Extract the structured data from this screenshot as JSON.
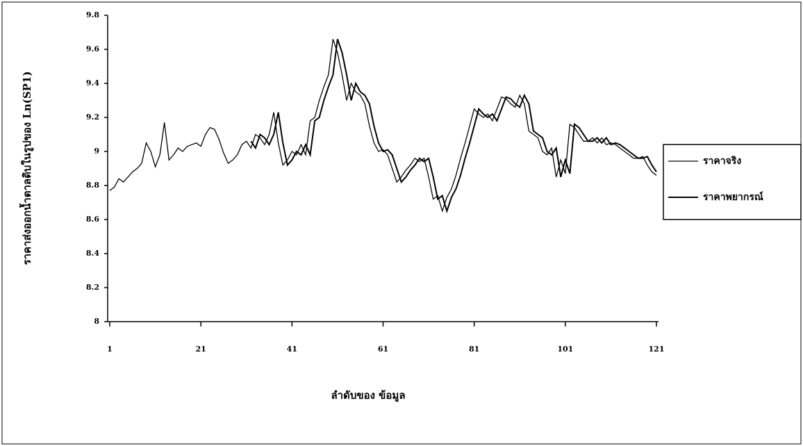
{
  "chart_data": {
    "type": "line",
    "y_label": "ราคาส่งออกน้ำตาลดิบในรูปของ Ln(SP1)",
    "x_label": "ลำดับของ ข้อมูล",
    "x": [
      1,
      2,
      3,
      4,
      5,
      6,
      7,
      8,
      9,
      10,
      11,
      12,
      13,
      14,
      15,
      16,
      17,
      18,
      19,
      20,
      21,
      22,
      23,
      24,
      25,
      26,
      27,
      28,
      29,
      30,
      31,
      32,
      33,
      34,
      35,
      36,
      37,
      38,
      39,
      40,
      41,
      42,
      43,
      44,
      45,
      46,
      47,
      48,
      49,
      50,
      51,
      52,
      53,
      54,
      55,
      56,
      57,
      58,
      59,
      60,
      61,
      62,
      63,
      64,
      65,
      66,
      67,
      68,
      69,
      70,
      71,
      72,
      73,
      74,
      75,
      76,
      77,
      78,
      79,
      80,
      81,
      82,
      83,
      84,
      85,
      86,
      87,
      88,
      89,
      90,
      91,
      92,
      93,
      94,
      95,
      96,
      97,
      98,
      99,
      100,
      101,
      102,
      103,
      104,
      105,
      106,
      107,
      108,
      109,
      110,
      111,
      112,
      113,
      114,
      115,
      116,
      117,
      118,
      119,
      120,
      121
    ],
    "series": [
      {
        "name": "ราคาจริง",
        "color": "#000000",
        "width": 1.3,
        "values": [
          8.77,
          8.79,
          8.84,
          8.82,
          8.85,
          8.88,
          8.9,
          8.93,
          9.05,
          9.0,
          8.91,
          8.98,
          9.17,
          8.95,
          8.98,
          9.02,
          9.0,
          9.03,
          9.04,
          9.05,
          9.03,
          9.1,
          9.14,
          9.13,
          9.07,
          8.99,
          8.93,
          8.95,
          8.98,
          9.04,
          9.06,
          9.02,
          9.1,
          9.08,
          9.04,
          9.1,
          9.23,
          9.05,
          8.92,
          8.95,
          9.0,
          8.98,
          9.04,
          8.98,
          9.18,
          9.2,
          9.3,
          9.38,
          9.45,
          9.66,
          9.58,
          9.45,
          9.3,
          9.4,
          9.35,
          9.33,
          9.28,
          9.15,
          9.05,
          9.0,
          9.01,
          8.98,
          8.9,
          8.82,
          8.85,
          8.89,
          8.92,
          8.96,
          8.94,
          8.96,
          8.85,
          8.72,
          8.74,
          8.65,
          8.73,
          8.78,
          8.86,
          8.96,
          9.05,
          9.15,
          9.25,
          9.22,
          9.2,
          9.22,
          9.18,
          9.25,
          9.32,
          9.31,
          9.28,
          9.26,
          9.33,
          9.28,
          9.12,
          9.1,
          9.08,
          9.0,
          8.98,
          9.02,
          8.85,
          8.95,
          8.87,
          9.16,
          9.14,
          9.1,
          9.06,
          9.06,
          9.08,
          9.05,
          9.08,
          9.04,
          9.05,
          9.04,
          9.02,
          9.0,
          8.98,
          8.96,
          8.96,
          8.97,
          8.92,
          8.88,
          8.86
        ]
      },
      {
        "name": "ราคาพยากรณ์",
        "color": "#000000",
        "width": 2,
        "values": [
          null,
          null,
          null,
          null,
          null,
          null,
          null,
          null,
          null,
          null,
          null,
          null,
          null,
          null,
          null,
          null,
          null,
          null,
          null,
          null,
          null,
          null,
          null,
          null,
          null,
          null,
          null,
          null,
          null,
          null,
          null,
          9.06,
          9.02,
          9.1,
          9.08,
          9.04,
          9.1,
          9.23,
          9.05,
          8.92,
          8.95,
          9.0,
          8.98,
          9.04,
          8.98,
          9.18,
          9.2,
          9.3,
          9.38,
          9.45,
          9.66,
          9.58,
          9.45,
          9.3,
          9.4,
          9.35,
          9.33,
          9.28,
          9.15,
          9.05,
          9.0,
          9.01,
          8.98,
          8.9,
          8.82,
          8.85,
          8.89,
          8.92,
          8.96,
          8.94,
          8.96,
          8.85,
          8.72,
          8.74,
          8.65,
          8.73,
          8.78,
          8.86,
          8.96,
          9.05,
          9.15,
          9.25,
          9.22,
          9.2,
          9.22,
          9.18,
          9.25,
          9.32,
          9.31,
          9.28,
          9.26,
          9.33,
          9.28,
          9.12,
          9.1,
          9.08,
          9.0,
          8.98,
          9.02,
          8.85,
          8.95,
          8.87,
          9.16,
          9.14,
          9.1,
          9.06,
          9.06,
          9.08,
          9.05,
          9.08,
          9.04,
          9.05,
          9.04,
          9.02,
          9.0,
          8.98,
          8.96,
          8.96,
          8.97,
          8.92,
          8.88
        ]
      }
    ],
    "xlim": [
      1,
      121
    ],
    "xticks": [
      1,
      21,
      41,
      61,
      81,
      101,
      121
    ],
    "ylim": [
      8,
      9.8
    ],
    "yticks": [
      8,
      8.2,
      8.4,
      8.6,
      8.8,
      9,
      9.2,
      9.4,
      9.6,
      9.8
    ],
    "legend": "right"
  }
}
